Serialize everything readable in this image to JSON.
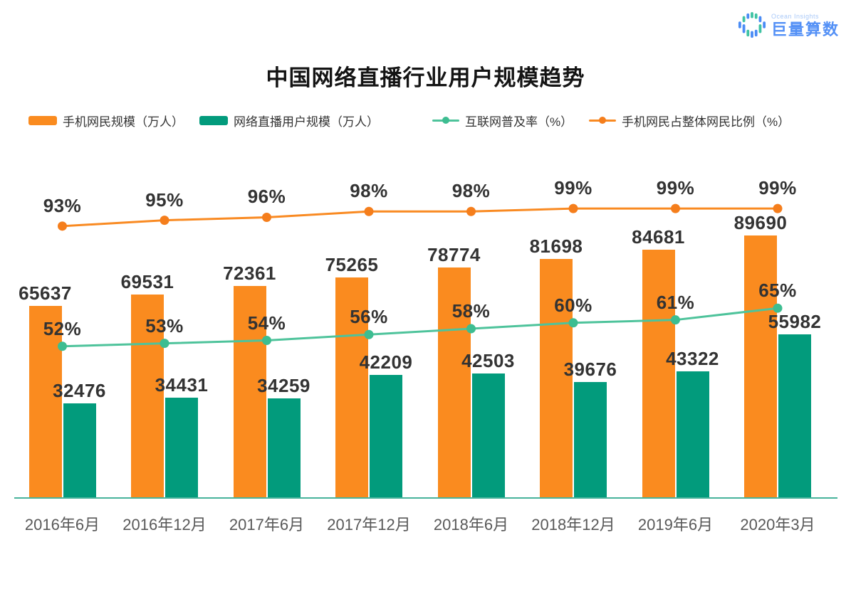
{
  "brand": {
    "name_en": "Ocean Insights",
    "name_zh": "巨量算数",
    "logo_icon": "equalizer-circle-icon",
    "logo_blue": "#4a8cf5",
    "logo_teal": "#3fc3a3"
  },
  "title": "中国网络直播行业用户规模趋势",
  "chart_data": {
    "type": "bar",
    "subtype": "bar-line-combo",
    "title": "中国网络直播行业用户规模趋势",
    "categories": [
      "2016年6月",
      "2016年12月",
      "2017年6月",
      "2017年12月",
      "2018年6月",
      "2018年12月",
      "2019年6月",
      "2020年3月"
    ],
    "series": [
      {
        "name": "手机网民规模（万人）",
        "type": "bar",
        "color": "#fa8b1f",
        "values": [
          65637,
          69531,
          72361,
          75265,
          78774,
          81698,
          84681,
          89690
        ],
        "label_suffix": ""
      },
      {
        "name": "网络直播用户规模（万人）",
        "type": "bar",
        "color": "#029b7c",
        "values": [
          32476,
          34431,
          34259,
          42209,
          42503,
          39676,
          43322,
          55982
        ],
        "label_suffix": ""
      },
      {
        "name": "互联网普及率（%）",
        "type": "line",
        "color": "#4ec39b",
        "dot_color": "#3dbd91",
        "values": [
          52,
          53,
          54,
          56,
          58,
          60,
          61,
          65
        ],
        "label_suffix": "%"
      },
      {
        "name": "手机网民占整体网民比例（%）",
        "type": "line",
        "color": "#f98a22",
        "dot_color": "#f57e1c",
        "values": [
          93,
          95,
          96,
          98,
          98,
          99,
          99,
          99
        ],
        "label_suffix": "%"
      }
    ],
    "legend_position": "top",
    "grid": false,
    "y_axis": "hidden",
    "x_axis_line_color": "#48b39b",
    "data_label_color": "#333333",
    "tick_label_color": "#595959",
    "xlabel": "",
    "ylabel": ""
  }
}
